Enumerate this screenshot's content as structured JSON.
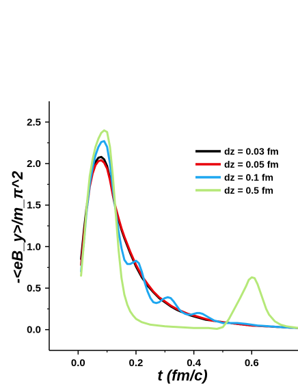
{
  "chart_data": {
    "type": "line",
    "xlabel": "t (fm/c)",
    "ylabel": "-<eB_y>/m_π^2",
    "xlim": [
      -0.1,
      0.76
    ],
    "ylim": [
      -0.25,
      2.75
    ],
    "xticks": [
      "0.0",
      "0.2",
      "0.4",
      "0.6"
    ],
    "xtick_values": [
      0.0,
      0.2,
      0.4,
      0.6
    ],
    "yticks": [
      "0.0",
      "0.5",
      "1.0",
      "1.5",
      "2.0",
      "2.5"
    ],
    "ytick_values": [
      0.0,
      0.5,
      1.0,
      1.5,
      2.0,
      2.5
    ],
    "legend_position": "top-right",
    "series": [
      {
        "name": "dz = 0.03 fm",
        "color": "#000000",
        "x": [
          0.01,
          0.02,
          0.03,
          0.04,
          0.05,
          0.06,
          0.07,
          0.08,
          0.09,
          0.1,
          0.11,
          0.12,
          0.13,
          0.14,
          0.15,
          0.16,
          0.18,
          0.2,
          0.22,
          0.24,
          0.26,
          0.28,
          0.3,
          0.32,
          0.34,
          0.36,
          0.38,
          0.4,
          0.42,
          0.44,
          0.46,
          0.48,
          0.5,
          0.55,
          0.6,
          0.65,
          0.7,
          0.76
        ],
        "y": [
          0.85,
          1.2,
          1.5,
          1.75,
          1.92,
          2.02,
          2.07,
          2.08,
          2.05,
          1.97,
          1.82,
          1.62,
          1.45,
          1.32,
          1.2,
          1.1,
          0.92,
          0.76,
          0.63,
          0.53,
          0.45,
          0.38,
          0.33,
          0.28,
          0.24,
          0.21,
          0.18,
          0.16,
          0.14,
          0.12,
          0.11,
          0.1,
          0.09,
          0.07,
          0.05,
          0.04,
          0.03,
          0.02
        ]
      },
      {
        "name": "dz = 0.05 fm",
        "color": "#e8000b",
        "x": [
          0.01,
          0.02,
          0.03,
          0.04,
          0.05,
          0.06,
          0.07,
          0.08,
          0.09,
          0.1,
          0.11,
          0.12,
          0.13,
          0.14,
          0.15,
          0.16,
          0.18,
          0.2,
          0.22,
          0.24,
          0.26,
          0.28,
          0.3,
          0.32,
          0.34,
          0.36,
          0.38,
          0.4,
          0.42,
          0.44,
          0.46,
          0.48,
          0.5,
          0.55,
          0.6,
          0.65,
          0.7,
          0.76
        ],
        "y": [
          0.78,
          1.15,
          1.45,
          1.72,
          1.88,
          1.98,
          2.03,
          2.04,
          2.01,
          1.94,
          1.8,
          1.62,
          1.47,
          1.34,
          1.22,
          1.12,
          0.94,
          0.78,
          0.65,
          0.55,
          0.46,
          0.39,
          0.34,
          0.29,
          0.25,
          0.22,
          0.19,
          0.17,
          0.15,
          0.13,
          0.11,
          0.1,
          0.09,
          0.07,
          0.05,
          0.04,
          0.03,
          0.02
        ]
      },
      {
        "name": "dz = 0.1 fm",
        "color": "#1ea7f0",
        "x": [
          0.01,
          0.02,
          0.03,
          0.04,
          0.05,
          0.06,
          0.07,
          0.08,
          0.09,
          0.1,
          0.11,
          0.12,
          0.13,
          0.14,
          0.15,
          0.16,
          0.17,
          0.18,
          0.19,
          0.2,
          0.21,
          0.22,
          0.23,
          0.24,
          0.25,
          0.26,
          0.27,
          0.28,
          0.29,
          0.3,
          0.31,
          0.32,
          0.33,
          0.34,
          0.35,
          0.36,
          0.37,
          0.38,
          0.39,
          0.4,
          0.41,
          0.42,
          0.43,
          0.44,
          0.45,
          0.46,
          0.47,
          0.48,
          0.49,
          0.5,
          0.52,
          0.55,
          0.58,
          0.62,
          0.66,
          0.7,
          0.76
        ],
        "y": [
          0.7,
          1.05,
          1.45,
          1.75,
          1.95,
          2.1,
          2.2,
          2.26,
          2.27,
          2.2,
          2.0,
          1.7,
          1.42,
          1.18,
          0.98,
          0.84,
          0.79,
          0.79,
          0.81,
          0.83,
          0.8,
          0.7,
          0.57,
          0.46,
          0.38,
          0.33,
          0.32,
          0.33,
          0.36,
          0.38,
          0.39,
          0.38,
          0.34,
          0.29,
          0.24,
          0.21,
          0.19,
          0.18,
          0.18,
          0.19,
          0.2,
          0.2,
          0.19,
          0.17,
          0.15,
          0.13,
          0.11,
          0.1,
          0.09,
          0.08,
          0.08,
          0.08,
          0.07,
          0.05,
          0.04,
          0.03,
          0.02
        ]
      },
      {
        "name": "dz = 0.5 fm",
        "color": "#b5e878",
        "x": [
          0.01,
          0.02,
          0.03,
          0.04,
          0.05,
          0.06,
          0.07,
          0.08,
          0.09,
          0.1,
          0.11,
          0.12,
          0.13,
          0.14,
          0.15,
          0.16,
          0.17,
          0.18,
          0.19,
          0.2,
          0.22,
          0.25,
          0.3,
          0.35,
          0.4,
          0.45,
          0.48,
          0.5,
          0.52,
          0.54,
          0.56,
          0.58,
          0.59,
          0.6,
          0.61,
          0.62,
          0.63,
          0.64,
          0.65,
          0.66,
          0.68,
          0.7,
          0.72,
          0.74,
          0.76
        ],
        "y": [
          0.65,
          1.05,
          1.5,
          1.85,
          2.05,
          2.2,
          2.3,
          2.37,
          2.4,
          2.38,
          2.2,
          1.85,
          1.4,
          0.95,
          0.62,
          0.42,
          0.3,
          0.22,
          0.17,
          0.13,
          0.09,
          0.06,
          0.04,
          0.03,
          0.02,
          0.02,
          0.01,
          0.03,
          0.12,
          0.25,
          0.38,
          0.52,
          0.6,
          0.63,
          0.62,
          0.55,
          0.45,
          0.35,
          0.25,
          0.18,
          0.1,
          0.06,
          0.04,
          0.03,
          0.02
        ]
      }
    ]
  }
}
